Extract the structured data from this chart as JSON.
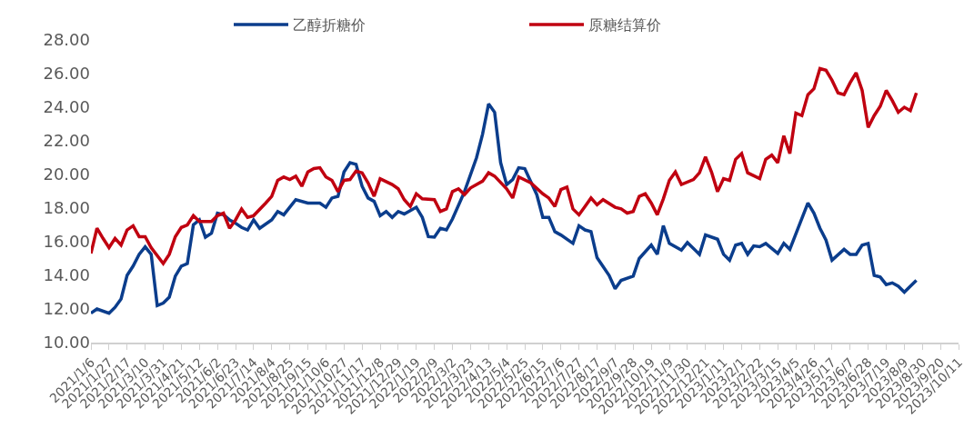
{
  "chart_data": {
    "type": "line",
    "series": [
      {
        "name": "乙醇折糖价",
        "color": "#0b3d8c",
        "x": [
          "2021-01-06",
          "2021-01-13",
          "2021-01-27",
          "2021-02-03",
          "2021-02-10",
          "2021-02-17",
          "2021-02-24",
          "2021-03-03",
          "2021-03-10",
          "2021-03-17",
          "2021-03-24",
          "2021-03-31",
          "2021-04-07",
          "2021-04-14",
          "2021-04-21",
          "2021-04-28",
          "2021-05-05",
          "2021-05-12",
          "2021-05-19",
          "2021-05-26",
          "2021-06-02",
          "2021-06-09",
          "2021-06-16",
          "2021-06-23",
          "2021-06-30",
          "2021-07-07",
          "2021-07-14",
          "2021-07-21",
          "2021-08-04",
          "2021-08-11",
          "2021-08-18",
          "2021-09-01",
          "2021-09-15",
          "2021-09-29",
          "2021-10-06",
          "2021-10-13",
          "2021-10-20",
          "2021-10-27",
          "2021-11-03",
          "2021-11-10",
          "2021-11-17",
          "2021-11-24",
          "2021-12-01",
          "2021-12-08",
          "2021-12-15",
          "2021-12-22",
          "2021-12-29",
          "2022-01-05",
          "2022-01-19",
          "2022-01-26",
          "2022-02-02",
          "2022-02-09",
          "2022-02-16",
          "2022-02-23",
          "2022-03-02",
          "2022-03-16",
          "2022-03-30",
          "2022-04-06",
          "2022-04-13",
          "2022-04-20",
          "2022-04-27",
          "2022-05-04",
          "2022-05-11",
          "2022-05-18",
          "2022-05-25",
          "2022-06-08",
          "2022-06-15",
          "2022-06-22",
          "2022-06-29",
          "2022-07-06",
          "2022-07-20",
          "2022-07-27",
          "2022-08-03",
          "2022-08-10",
          "2022-08-17",
          "2022-08-31",
          "2022-09-07",
          "2022-09-14",
          "2022-09-28",
          "2022-10-05",
          "2022-10-19",
          "2022-10-26",
          "2022-11-02",
          "2022-11-09",
          "2022-11-23",
          "2022-11-30",
          "2022-12-14",
          "2022-12-21",
          "2023-01-04",
          "2023-01-11",
          "2023-01-18",
          "2023-01-25",
          "2023-02-01",
          "2023-02-08",
          "2023-02-15",
          "2023-02-22",
          "2023-03-01",
          "2023-03-15",
          "2023-03-22",
          "2023-03-29",
          "2023-04-19",
          "2023-04-26",
          "2023-05-03",
          "2023-05-10",
          "2023-05-17",
          "2023-05-31",
          "2023-06-07",
          "2023-06-14",
          "2023-06-21",
          "2023-06-28",
          "2023-07-05",
          "2023-07-12",
          "2023-07-19",
          "2023-07-26",
          "2023-08-02",
          "2023-08-09",
          "2023-08-16",
          "2023-08-23"
        ],
        "values": [
          11.75,
          12.0,
          11.75,
          12.1,
          12.6,
          14.0,
          14.55,
          15.25,
          15.7,
          15.25,
          12.2,
          12.35,
          12.7,
          13.95,
          14.55,
          14.7,
          17.0,
          17.3,
          16.27,
          16.5,
          17.7,
          17.6,
          17.3,
          17.1,
          16.85,
          16.7,
          17.3,
          16.8,
          17.3,
          17.8,
          17.6,
          18.5,
          18.3,
          18.3,
          18.05,
          18.6,
          18.7,
          20.15,
          20.7,
          20.6,
          19.3,
          18.6,
          18.4,
          17.55,
          17.8,
          17.45,
          17.8,
          17.65,
          18.05,
          17.45,
          16.3,
          16.27,
          16.8,
          16.7,
          17.35,
          18.98,
          21.0,
          22.4,
          24.2,
          23.7,
          20.7,
          19.4,
          19.7,
          20.4,
          20.35,
          18.8,
          17.45,
          17.45,
          16.6,
          16.4,
          15.9,
          16.95,
          16.7,
          16.6,
          15.05,
          14.0,
          13.2,
          13.7,
          13.95,
          15.0,
          15.8,
          15.25,
          16.95,
          15.9,
          15.5,
          15.95,
          15.25,
          16.4,
          16.15,
          15.25,
          14.9,
          15.8,
          15.9,
          15.25,
          15.75,
          15.7,
          15.9,
          15.3,
          15.9,
          15.55,
          18.3,
          17.7,
          16.8,
          16.1,
          14.9,
          15.55,
          15.25,
          15.25,
          15.8,
          15.9,
          14.0,
          13.9,
          13.45,
          13.55,
          13.35,
          13.0,
          13.35,
          13.7
        ]
      },
      {
        "name": "原糖结算价",
        "color": "#c00010",
        "x": [
          "2021-01-06",
          "2021-01-13",
          "2021-01-20",
          "2021-01-27",
          "2021-02-03",
          "2021-02-10",
          "2021-02-17",
          "2021-02-24",
          "2021-03-03",
          "2021-03-10",
          "2021-03-17",
          "2021-03-31",
          "2021-04-07",
          "2021-04-14",
          "2021-04-21",
          "2021-04-28",
          "2021-05-05",
          "2021-05-12",
          "2021-05-26",
          "2021-06-02",
          "2021-06-09",
          "2021-06-16",
          "2021-06-23",
          "2021-06-30",
          "2021-07-07",
          "2021-07-14",
          "2021-07-28",
          "2021-08-04",
          "2021-08-11",
          "2021-08-18",
          "2021-08-25",
          "2021-09-01",
          "2021-09-08",
          "2021-09-15",
          "2021-09-22",
          "2021-09-29",
          "2021-10-06",
          "2021-10-13",
          "2021-10-20",
          "2021-10-27",
          "2021-11-03",
          "2021-11-10",
          "2021-11-17",
          "2021-11-24",
          "2021-12-01",
          "2021-12-08",
          "2021-12-22",
          "2021-12-29",
          "2022-01-05",
          "2022-01-12",
          "2022-01-19",
          "2022-01-26",
          "2022-02-09",
          "2022-02-16",
          "2022-02-23",
          "2022-03-02",
          "2022-03-09",
          "2022-03-16",
          "2022-03-23",
          "2022-04-06",
          "2022-04-13",
          "2022-04-20",
          "2022-05-04",
          "2022-05-11",
          "2022-05-18",
          "2022-06-01",
          "2022-06-15",
          "2022-06-22",
          "2022-06-29",
          "2022-07-06",
          "2022-07-13",
          "2022-07-20",
          "2022-07-27",
          "2022-08-03",
          "2022-08-10",
          "2022-08-17",
          "2022-08-24",
          "2022-09-07",
          "2022-09-14",
          "2022-09-21",
          "2022-09-28",
          "2022-10-05",
          "2022-10-12",
          "2022-10-19",
          "2022-10-26",
          "2022-11-02",
          "2022-11-09",
          "2022-11-16",
          "2022-11-23",
          "2022-12-07",
          "2022-12-14",
          "2022-12-21",
          "2022-12-28",
          "2023-01-04",
          "2023-01-11",
          "2023-01-18",
          "2023-01-25",
          "2023-02-01",
          "2023-02-08",
          "2023-02-22",
          "2023-03-01",
          "2023-03-08",
          "2023-03-15",
          "2023-03-22",
          "2023-03-29",
          "2023-04-05",
          "2023-04-12",
          "2023-04-19",
          "2023-04-26",
          "2023-05-03",
          "2023-05-10",
          "2023-05-17",
          "2023-05-24",
          "2023-05-31",
          "2023-06-07",
          "2023-06-14",
          "2023-06-21",
          "2023-06-28",
          "2023-07-05",
          "2023-07-12",
          "2023-07-19",
          "2023-07-26",
          "2023-08-02",
          "2023-08-09",
          "2023-08-16",
          "2023-08-23"
        ],
        "values": [
          15.3,
          16.8,
          16.2,
          15.65,
          16.2,
          15.8,
          16.7,
          16.95,
          16.3,
          16.3,
          15.65,
          14.7,
          15.25,
          16.3,
          16.85,
          17.0,
          17.55,
          17.2,
          17.2,
          17.55,
          17.7,
          16.8,
          17.3,
          17.95,
          17.45,
          17.55,
          18.3,
          18.7,
          19.65,
          19.85,
          19.7,
          19.9,
          19.3,
          20.15,
          20.35,
          20.4,
          19.85,
          19.65,
          18.98,
          19.65,
          19.7,
          20.2,
          20.1,
          19.5,
          18.7,
          19.75,
          19.4,
          19.15,
          18.5,
          18.1,
          18.85,
          18.55,
          18.5,
          17.8,
          17.95,
          18.98,
          19.15,
          18.8,
          19.2,
          19.6,
          20.1,
          19.9,
          19.15,
          18.6,
          19.85,
          19.5,
          18.85,
          18.6,
          18.1,
          19.1,
          19.25,
          17.95,
          17.6,
          18.1,
          18.6,
          18.2,
          18.5,
          18.05,
          17.95,
          17.7,
          17.8,
          18.7,
          18.85,
          18.3,
          17.6,
          18.55,
          19.65,
          20.15,
          19.4,
          19.7,
          20.1,
          21.05,
          20.15,
          18.98,
          19.75,
          19.65,
          20.9,
          21.25,
          20.1,
          19.75,
          20.9,
          21.15,
          20.7,
          22.3,
          21.25,
          23.65,
          23.5,
          24.75,
          25.1,
          26.3,
          26.2,
          25.6,
          24.85,
          24.75,
          25.45,
          26.05,
          25.0,
          22.8,
          23.5,
          24.05,
          25.0,
          24.4,
          23.7,
          24.0,
          23.8,
          24.85
        ]
      }
    ],
    "xlim": [
      "2021-01-06",
      "2023-10-11"
    ],
    "xticks": [
      {
        "value": "2021-01-06",
        "label": "2021/1/6"
      },
      {
        "value": "2021-01-27",
        "label": "2021/1/27"
      },
      {
        "value": "2021-02-17",
        "label": "2021/2/17"
      },
      {
        "value": "2021-03-10",
        "label": "2021/3/10"
      },
      {
        "value": "2021-03-31",
        "label": "2021/3/31"
      },
      {
        "value": "2021-04-21",
        "label": "2021/4/21"
      },
      {
        "value": "2021-05-12",
        "label": "2021/5/12"
      },
      {
        "value": "2021-06-02",
        "label": "2021/6/2"
      },
      {
        "value": "2021-06-23",
        "label": "2021/6/23"
      },
      {
        "value": "2021-07-14",
        "label": "2021/7/14"
      },
      {
        "value": "2021-08-04",
        "label": "2021/8/4"
      },
      {
        "value": "2021-08-25",
        "label": "2021/8/25"
      },
      {
        "value": "2021-09-15",
        "label": "2021/9/15"
      },
      {
        "value": "2021-10-06",
        "label": "2021/10/6"
      },
      {
        "value": "2021-10-27",
        "label": "2021/10/27"
      },
      {
        "value": "2021-11-17",
        "label": "2021/11/17"
      },
      {
        "value": "2021-12-08",
        "label": "2021/12/8"
      },
      {
        "value": "2021-12-29",
        "label": "2021/12/29"
      },
      {
        "value": "2022-01-19",
        "label": "2022/1/19"
      },
      {
        "value": "2022-02-09",
        "label": "2022/2/9"
      },
      {
        "value": "2022-03-02",
        "label": "2022/3/2"
      },
      {
        "value": "2022-03-23",
        "label": "2022/3/23"
      },
      {
        "value": "2022-04-13",
        "label": "2022/4/13"
      },
      {
        "value": "2022-05-04",
        "label": "2022/5/4"
      },
      {
        "value": "2022-05-25",
        "label": "2022/5/25"
      },
      {
        "value": "2022-06-15",
        "label": "2022/6/15"
      },
      {
        "value": "2022-07-06",
        "label": "2022/7/6"
      },
      {
        "value": "2022-07-27",
        "label": "2022/7/27"
      },
      {
        "value": "2022-08-17",
        "label": "2022/8/17"
      },
      {
        "value": "2022-09-07",
        "label": "2022/9/7"
      },
      {
        "value": "2022-09-28",
        "label": "2022/9/28"
      },
      {
        "value": "2022-10-19",
        "label": "2022/10/19"
      },
      {
        "value": "2022-11-09",
        "label": "2022/11/9"
      },
      {
        "value": "2022-11-30",
        "label": "2022/11/30"
      },
      {
        "value": "2022-12-21",
        "label": "2022/12/21"
      },
      {
        "value": "2023-01-11",
        "label": "2023/1/11"
      },
      {
        "value": "2023-02-01",
        "label": "2023/2/1"
      },
      {
        "value": "2023-02-22",
        "label": "2023/2/22"
      },
      {
        "value": "2023-03-15",
        "label": "2023/3/15"
      },
      {
        "value": "2023-04-05",
        "label": "2023/4/5"
      },
      {
        "value": "2023-04-26",
        "label": "2023/4/26"
      },
      {
        "value": "2023-05-17",
        "label": "2023/5/17"
      },
      {
        "value": "2023-06-07",
        "label": "2023/6/7"
      },
      {
        "value": "2023-06-28",
        "label": "2023/6/28"
      },
      {
        "value": "2023-07-19",
        "label": "2023/7/19"
      },
      {
        "value": "2023-08-09",
        "label": "2023/8/9"
      },
      {
        "value": "2023-08-30",
        "label": "2023/8/30"
      },
      {
        "value": "2023-09-20",
        "label": "2023/9/20"
      },
      {
        "value": "2023-10-11",
        "label": "2023/10/11"
      }
    ],
    "ylim": [
      10,
      28
    ],
    "yticks": [
      {
        "value": 10,
        "label": "10.00"
      },
      {
        "value": 12,
        "label": "12.00"
      },
      {
        "value": 14,
        "label": "14.00"
      },
      {
        "value": 16,
        "label": "16.00"
      },
      {
        "value": 18,
        "label": "18.00"
      },
      {
        "value": 20,
        "label": "20.00"
      },
      {
        "value": 22,
        "label": "22.00"
      },
      {
        "value": 24,
        "label": "24.00"
      },
      {
        "value": 26,
        "label": "26.00"
      },
      {
        "value": 28,
        "label": "28.00"
      }
    ],
    "grid": false,
    "legend": "top",
    "marker": "none",
    "line_style": "solid"
  }
}
